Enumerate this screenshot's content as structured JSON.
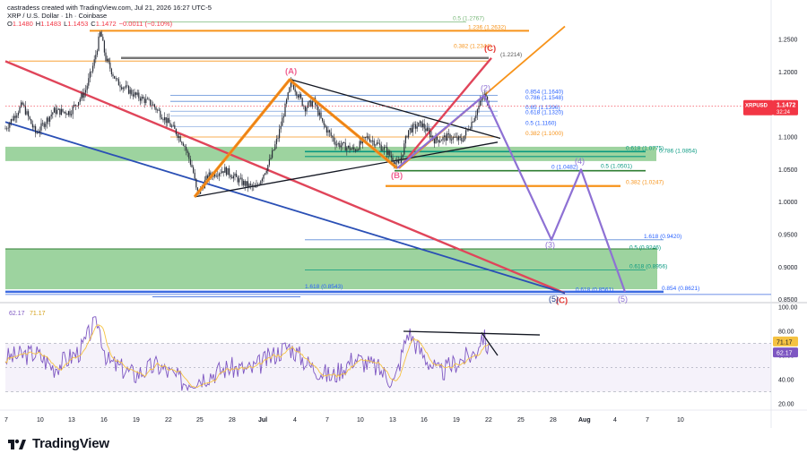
{
  "header": {
    "creator": "castradess created with TradingView.com, Jul 21, 2026 16:27 UTC-5",
    "symbol_line": "XRP / U.S. Dollar · 1h · Coinbase",
    "ohlc": [
      {
        "k": "O",
        "v": "1.1480"
      },
      {
        "k": "H",
        "v": "1.1483"
      },
      {
        "k": "L",
        "v": "1.1453"
      },
      {
        "k": "C",
        "v": "1.1472"
      },
      {
        "k": "",
        "v": "−0.0011 (−0.10%)"
      }
    ]
  },
  "price_axis": {
    "ticks": [
      "1.2500",
      "1.2000",
      "1.1500",
      "1.1000",
      "1.0500",
      "1.0000",
      "0.9500",
      "0.9000",
      "0.8500"
    ],
    "badge_symbol": "XRPUSD",
    "badge_price": "1.1472",
    "badge_countdown": "32:24",
    "accent": "#f23645"
  },
  "rsi": {
    "legend_value": "62.17",
    "legend_ma": "71.17",
    "ticks": [
      "100.00",
      "80.00",
      "60.00",
      "40.00",
      "20.00"
    ],
    "badge_ma": "71.17",
    "badge_value": "62.17"
  },
  "time_axis": [
    "7",
    "10",
    "13",
    "16",
    "19",
    "22",
    "25",
    "28",
    "Jul",
    "4",
    "7",
    "10",
    "13",
    "16",
    "19",
    "22",
    "25",
    "28",
    "Aug",
    "4",
    "7",
    "10"
  ],
  "fib_labels": [
    {
      "text": "0.5 (1.2767)",
      "color": "#7ab87a"
    },
    {
      "text": "1.236 (1.2632)",
      "color": "#f7931a"
    },
    {
      "text": "(1.2214)",
      "color": "#555555"
    },
    {
      "text": "0.382 (1.2344)",
      "color": "#f7931a"
    },
    {
      "text": "0.854 (1.1640)",
      "color": "#2962ff"
    },
    {
      "text": "0.786 (1.1548)",
      "color": "#2962ff"
    },
    {
      "text": "0.65 (1.1396)",
      "color": "#2962ff"
    },
    {
      "text": "0.618 (1.1320)",
      "color": "#2962ff"
    },
    {
      "text": "0.5 (1.1160)",
      "color": "#2962ff"
    },
    {
      "text": "0.382 (1.1000)",
      "color": "#f7931a"
    },
    {
      "text": "0.618 (1.0775)",
      "color": "#089981"
    },
    {
      "text": "0.786 (1.0854)",
      "color": "#089981"
    },
    {
      "text": "0 (1.0482)",
      "color": "#2962ff"
    },
    {
      "text": "0.5 (1.0501)",
      "color": "#089981"
    },
    {
      "text": "0.382 (1.0247)",
      "color": "#f7931a"
    },
    {
      "text": "1.618 (0.9420)",
      "color": "#2962ff"
    },
    {
      "text": "0.5 (0.9246)",
      "color": "#089981"
    },
    {
      "text": "0.618 (0.8956)",
      "color": "#089981"
    },
    {
      "text": "1.618 (0.8543)",
      "color": "#2962ff"
    },
    {
      "text": "0.618 (0.8561)",
      "color": "#2962ff"
    },
    {
      "text": "0.854 (0.8621)",
      "color": "#2962ff"
    }
  ],
  "wave_labels": {
    "A": "(A)",
    "B": "(B)",
    "C_top": "(C)",
    "C_bottom": "(C)",
    "w2": "(2)",
    "w3": "(3)",
    "w4": "(4)",
    "w5": "(5)",
    "w5b": "(5)"
  },
  "colors": {
    "candles": "#2a2e39",
    "orange": "#f7931a",
    "red": "#e0455a",
    "blue": "#2a4fb5",
    "purple": "#8e71d4",
    "green_zone": "#4caf50",
    "rsi_line": "#7e57c2",
    "rsi_ma": "#f5c242"
  },
  "branding": {
    "name": "TradingView"
  },
  "chart_data": {
    "type": "line",
    "title": "XRP / U.S. Dollar · 1h · Coinbase",
    "xlabel": "",
    "ylabel": "",
    "ylim": [
      0.85,
      1.27
    ],
    "x": [
      "Jun 7",
      "Jun 10",
      "Jun 13",
      "Jun 16",
      "Jun 19",
      "Jun 22",
      "Jun 25",
      "Jun 28",
      "Jul 1",
      "Jul 4",
      "Jul 7",
      "Jul 10",
      "Jul 13",
      "Jul 16",
      "Jul 19",
      "Jul 21"
    ],
    "series": [
      {
        "name": "XRPUSD",
        "values": [
          1.1,
          1.12,
          1.13,
          1.27,
          1.18,
          1.11,
          1.03,
          1.04,
          1.1,
          1.18,
          1.1,
          1.08,
          1.06,
          1.1,
          1.11,
          1.147
        ]
      },
      {
        "name": "RSI",
        "values": [
          55,
          60,
          52,
          88,
          55,
          45,
          40,
          48,
          60,
          70,
          50,
          55,
          45,
          60,
          70,
          62.17
        ]
      }
    ],
    "grid": false,
    "legend": "none"
  }
}
